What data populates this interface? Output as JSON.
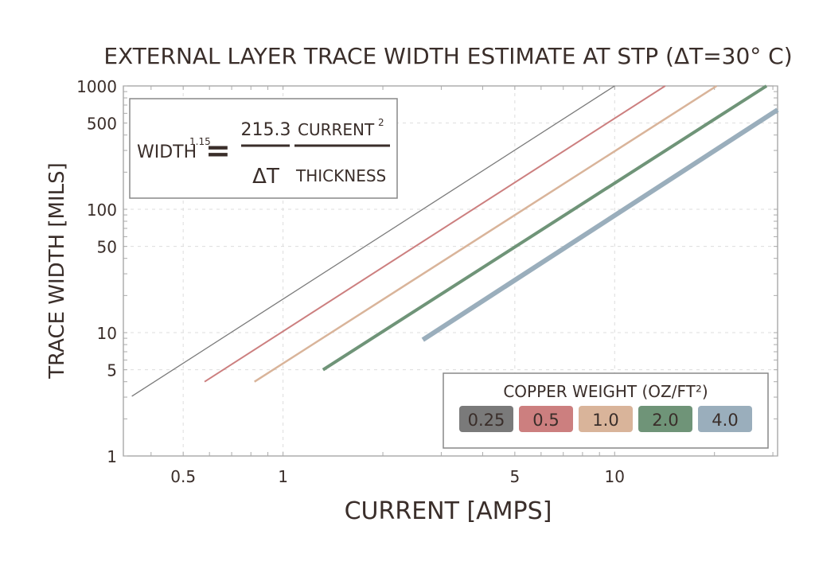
{
  "chart_data": {
    "type": "line",
    "title": "EXTERNAL LAYER TRACE WIDTH ESTIMATE AT STP (ΔT=30° C)",
    "xlabel": "CURRENT [AMPS]",
    "ylabel": "TRACE WIDTH [MILS]",
    "x_scale": "log",
    "y_scale": "log",
    "xlim": [
      0.33,
      31
    ],
    "ylim": [
      1,
      1000
    ],
    "x_ticks": [
      0.5,
      1,
      5,
      10
    ],
    "x_tick_labels": [
      "0.5",
      "1",
      "5",
      "10"
    ],
    "y_ticks": [
      1,
      5,
      10,
      50,
      100,
      500,
      1000
    ],
    "y_tick_labels": [
      "1",
      "5",
      "10",
      "50",
      "100",
      "500",
      "1000"
    ],
    "grid": true,
    "formula": {
      "lhs": "WIDTH",
      "lhs_exp": "1.15",
      "equals": "=",
      "coef": "215.3",
      "denominator": "ΔT",
      "numerator2": "CURRENT",
      "numerator2_exp": "2",
      "denominator2": "THICKNESS"
    },
    "legend": {
      "title": "COPPER WEIGHT (OZ/FT²)",
      "placement": "bottom-right"
    },
    "series": [
      {
        "name": "0.25",
        "color": "#7a7a7a",
        "x": [
          0.35,
          10.0
        ],
        "y": [
          3.05,
          1000
        ]
      },
      {
        "name": "0.5",
        "color": "#cc7f7f",
        "x": [
          0.58,
          14.2
        ],
        "y": [
          4.0,
          1000
        ]
      },
      {
        "name": "1.0",
        "color": "#d9b49a",
        "x": [
          0.82,
          20.3
        ],
        "y": [
          4.0,
          1000
        ]
      },
      {
        "name": "2.0",
        "color": "#6f9478",
        "x": [
          1.32,
          28.7
        ],
        "y": [
          5.0,
          1000
        ]
      },
      {
        "name": "4.0",
        "color": "#9aaebc",
        "x": [
          2.64,
          31
        ],
        "y": [
          8.75,
          640
        ]
      }
    ]
  }
}
